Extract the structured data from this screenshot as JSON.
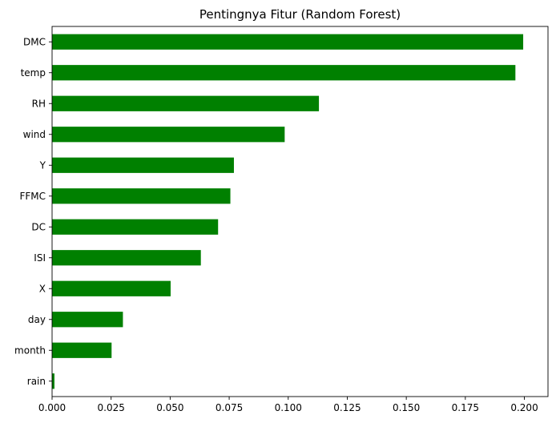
{
  "chart_data": {
    "type": "bar",
    "orientation": "horizontal",
    "title": "Pentingnya Fitur (Random Forest)",
    "xlabel": "",
    "ylabel": "",
    "categories": [
      "DMC",
      "temp",
      "RH",
      "wind",
      "Y",
      "FFMC",
      "DC",
      "ISI",
      "X",
      "day",
      "month",
      "rain"
    ],
    "values": [
      0.1995,
      0.1962,
      0.113,
      0.0985,
      0.077,
      0.0755,
      0.0703,
      0.063,
      0.0502,
      0.03,
      0.0252,
      0.001
    ],
    "xlim": [
      0,
      0.21
    ],
    "xticks": [
      "0.000",
      "0.025",
      "0.050",
      "0.075",
      "0.100",
      "0.125",
      "0.150",
      "0.175",
      "0.200"
    ],
    "bar_color": "#008000",
    "grid": false,
    "legend": false
  }
}
